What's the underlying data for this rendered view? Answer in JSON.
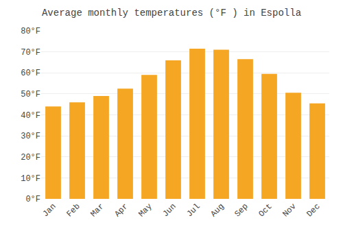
{
  "chart_data": {
    "type": "bar",
    "title": "Average monthly temperatures (°F ) in Espolla",
    "categories": [
      "Jan",
      "Feb",
      "Mar",
      "Apr",
      "May",
      "Jun",
      "Jul",
      "Aug",
      "Sep",
      "Oct",
      "Nov",
      "Dec"
    ],
    "values": [
      44,
      46,
      49,
      52.5,
      59,
      66,
      71.5,
      71,
      66.5,
      59.5,
      50.5,
      45.5
    ],
    "color": "#F5A623",
    "ylim": [
      0,
      80
    ],
    "yticks": [
      {
        "value": 0,
        "label": "0°F"
      },
      {
        "value": 10,
        "label": "10°F"
      },
      {
        "value": 20,
        "label": "20°F"
      },
      {
        "value": 30,
        "label": "30°F"
      },
      {
        "value": 40,
        "label": "40°F"
      },
      {
        "value": 50,
        "label": "50°F"
      },
      {
        "value": 60,
        "label": "60°F"
      },
      {
        "value": 70,
        "label": "70°F"
      },
      {
        "value": 80,
        "label": "80°F"
      }
    ],
    "grid": true
  }
}
